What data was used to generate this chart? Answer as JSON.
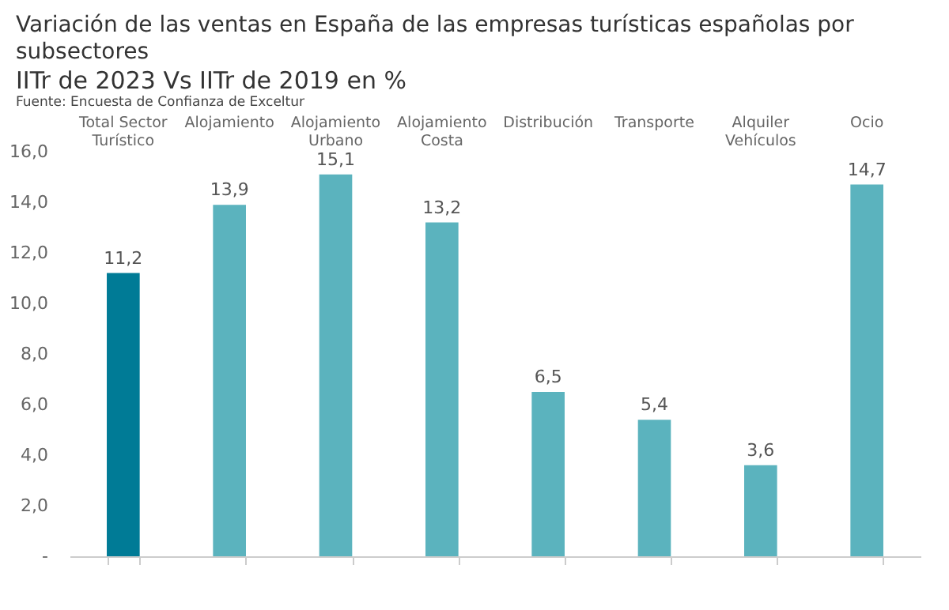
{
  "chart_data": {
    "type": "bar",
    "title": "Variación de las ventas en España de las empresas turísticas españolas por subsectores",
    "subtitle": "IITr de 2023 Vs IITr de 2019 en %",
    "annotations": [
      "Fuente: Encuesta de Confianza de Exceltur"
    ],
    "categories": [
      "Total Sector Turístico",
      "Alojamiento",
      "Alojamiento Urbano",
      "Alojamiento Costa",
      "Distribución",
      "Transporte",
      "Alquiler Vehículos",
      "Ocio"
    ],
    "values": [
      11.2,
      13.9,
      15.1,
      13.2,
      6.5,
      5.4,
      3.6,
      14.7
    ],
    "colors": [
      "#007b96",
      "#5bb3be",
      "#5bb3be",
      "#5bb3be",
      "#5bb3be",
      "#5bb3be",
      "#5bb3be",
      "#5bb3be"
    ],
    "value_labels": [
      "11,2",
      "13,9",
      "15,1",
      "13,2",
      "6,5",
      "5,4",
      "3,6",
      "14,7"
    ],
    "ylim": [
      0,
      16
    ],
    "yticks": [
      {
        "value": 0,
        "label": "-"
      },
      {
        "value": 2,
        "label": "2,0"
      },
      {
        "value": 4,
        "label": "4,0"
      },
      {
        "value": 6,
        "label": "6,0"
      },
      {
        "value": 8,
        "label": "8,0"
      },
      {
        "value": 10,
        "label": "10,0"
      },
      {
        "value": 12,
        "label": "12,0"
      },
      {
        "value": 14,
        "label": "14,0"
      },
      {
        "value": 16,
        "label": "16,0"
      }
    ],
    "grid": false,
    "legend": false
  }
}
